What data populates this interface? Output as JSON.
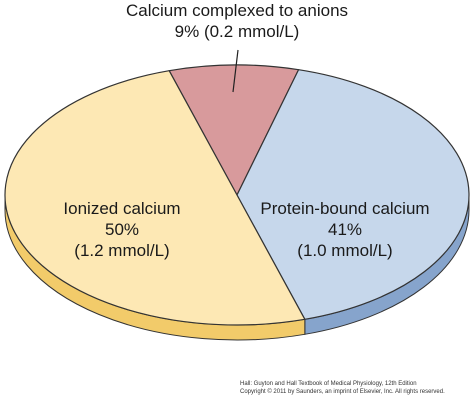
{
  "chart_data": {
    "type": "pie",
    "categories": [
      "Ionized calcium",
      "Protein-bound calcium",
      "Calcium complexed to anions"
    ],
    "values": [
      50,
      41,
      9
    ],
    "value_labels": [
      "50%",
      "41%",
      "9%"
    ],
    "concentrations": [
      "(1.2 mmol/L)",
      "(1.0 mmol/L)",
      "(0.2 mmol/L)"
    ],
    "colors": [
      "#fde8b4",
      "#c6d7eb",
      "#d89a9c"
    ],
    "side_colors": [
      "#f2cb6a",
      "#86a4cc",
      "#b87072"
    ],
    "footer": [
      "Hall: Guyton and Hall Textbook of Medical Physiology, 12th Edition",
      "Copyright © 2011 by Saunders, an imprint of Elsevier, Inc. All rights reserved."
    ]
  }
}
